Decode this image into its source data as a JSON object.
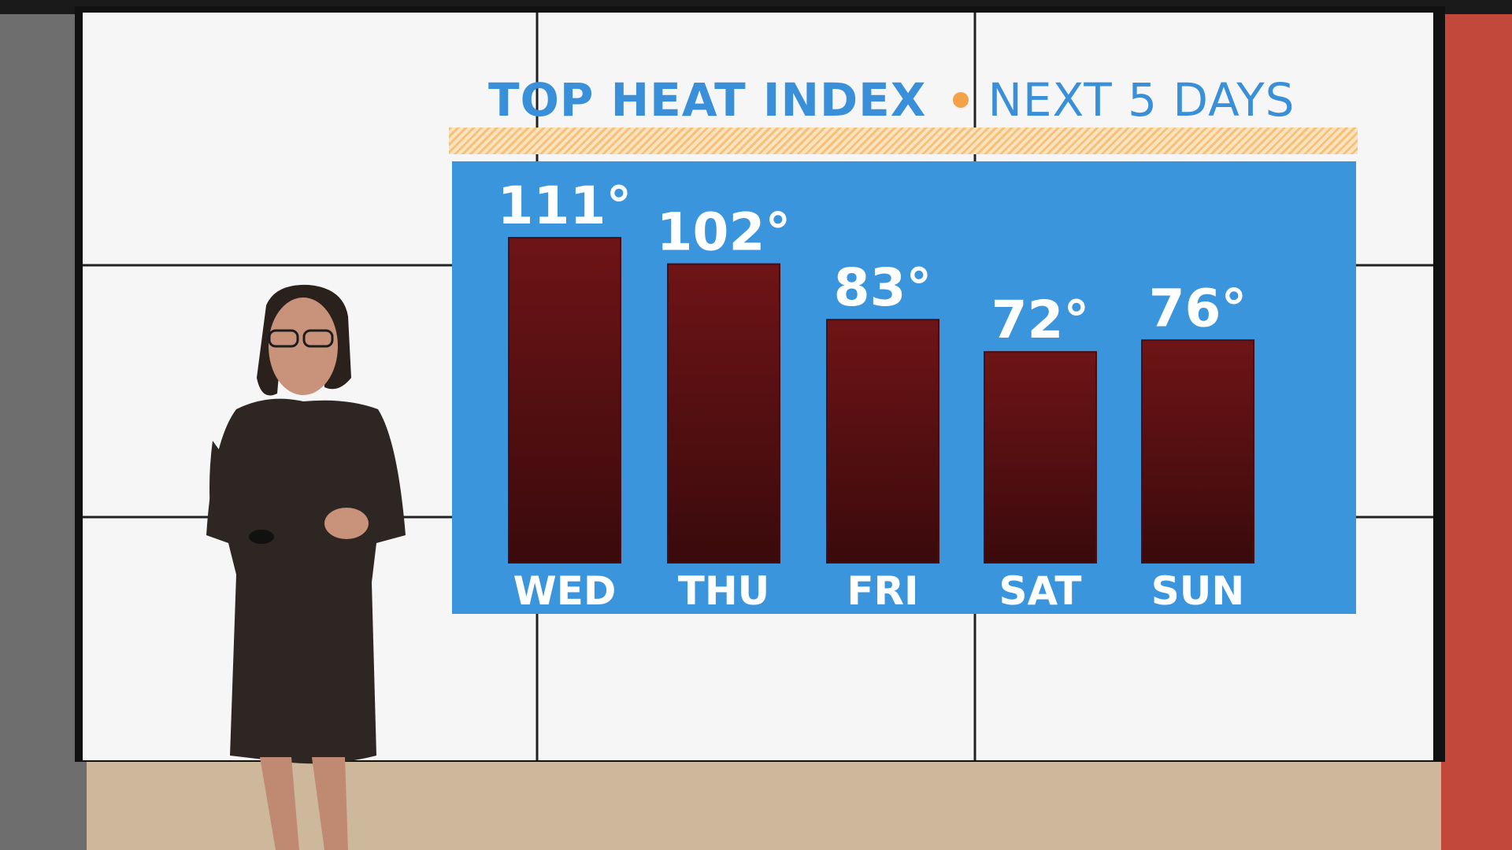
{
  "chart_data": {
    "type": "bar",
    "title": "TOP HEAT INDEX",
    "subtitle": "NEXT 5 DAYS",
    "categories": [
      "WED",
      "THU",
      "FRI",
      "SAT",
      "SUN"
    ],
    "values": [
      111,
      102,
      83,
      72,
      76
    ],
    "value_labels": [
      "111°",
      "102°",
      "83°",
      "72°",
      "76°"
    ],
    "xlabel": "",
    "ylabel": "",
    "grid": false,
    "colors": {
      "background": "#3a95dd",
      "bar": "#6e1416",
      "bar_dark": "#3a0a0c",
      "title": "#3a8fd9",
      "accent_dot": "#f4a24a",
      "label": "#ffffff"
    }
  }
}
